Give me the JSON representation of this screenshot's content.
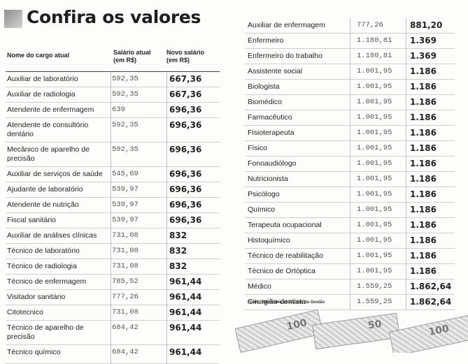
{
  "title": "Confira os valores",
  "headers": {
    "cargo": "Nome do cargo atual",
    "salario_atual": "Salário atual (em R$)",
    "novo_salario": "Novo salário (em R$)"
  },
  "left_rows": [
    {
      "cargo": "Auxiliar de laboratório",
      "atual": "592,35",
      "novo": "667,36"
    },
    {
      "cargo": "Auxiliar de radiologia",
      "atual": "592,35",
      "novo": "667,36"
    },
    {
      "cargo": "Atendente de enfermagem",
      "atual": "639",
      "novo": "696,36"
    },
    {
      "cargo": "Atendente de consultório dentário",
      "atual": "592,35",
      "novo": "696,36"
    },
    {
      "cargo": "Mecânico de aparelho de precisão",
      "atual": "592,35",
      "novo": "696,36"
    },
    {
      "cargo": "Auxiliar de serviços de saúde",
      "atual": "545,69",
      "novo": "696,36"
    },
    {
      "cargo": "Ajudante de laboratório",
      "atual": "539,97",
      "novo": "696,36"
    },
    {
      "cargo": "Atendente de nutrição",
      "atual": "539,97",
      "novo": "696,36"
    },
    {
      "cargo": "Fiscal sanitário",
      "atual": "539,97",
      "novo": "696,36"
    },
    {
      "cargo": "Auxiliar de análises clínicas",
      "atual": "731,08",
      "novo": "832"
    },
    {
      "cargo": "Técnico de laboratório",
      "atual": "731,08",
      "novo": "832"
    },
    {
      "cargo": "Técnico de radiologia",
      "atual": "731,08",
      "novo": "832"
    },
    {
      "cargo": "Técnico de enfermagem",
      "atual": "785,52",
      "novo": "961,44"
    },
    {
      "cargo": "Visitador sanitário",
      "atual": "777,26",
      "novo": "961,44"
    },
    {
      "cargo": "Citotecnico",
      "atual": "731,08",
      "novo": "961,44"
    },
    {
      "cargo": "Técnico de aparelho de precisão",
      "atual": "684,42",
      "novo": "961,44"
    },
    {
      "cargo": "Técnico químico",
      "atual": "684,42",
      "novo": "961,44"
    }
  ],
  "right_rows": [
    {
      "cargo": "Auxiliar de enfermagem",
      "atual": "777,26",
      "novo": "881,20"
    },
    {
      "cargo": "Enfermeiro",
      "atual": "1.180,81",
      "novo": "1.369"
    },
    {
      "cargo": "Enfermeiro do trabalho",
      "atual": "1.180,81",
      "novo": "1.369"
    },
    {
      "cargo": "Assistente social",
      "atual": "1.001,95",
      "novo": "1.186"
    },
    {
      "cargo": "Biologista",
      "atual": "1.001,95",
      "novo": "1.186"
    },
    {
      "cargo": "Biomédico",
      "atual": "1.001,95",
      "novo": "1.186"
    },
    {
      "cargo": "Farmacêutico",
      "atual": "1.001,95",
      "novo": "1.186"
    },
    {
      "cargo": "Fisioterapeuta",
      "atual": "1.001,95",
      "novo": "1.186"
    },
    {
      "cargo": "Físico",
      "atual": "1.001,95",
      "novo": "1.186"
    },
    {
      "cargo": "Fonoaudiólogo",
      "atual": "1.001,95",
      "novo": "1.186"
    },
    {
      "cargo": "Nutricionista",
      "atual": "1.001,95",
      "novo": "1.186"
    },
    {
      "cargo": "Psicólogo",
      "atual": "1.001,95",
      "novo": "1.186"
    },
    {
      "cargo": "Químico",
      "atual": "1.001,95",
      "novo": "1.186"
    },
    {
      "cargo": "Terapeuta ocupacional",
      "atual": "1.001,95",
      "novo": "1.186"
    },
    {
      "cargo": "Histoquímico",
      "atual": "1.001,95",
      "novo": "1.186"
    },
    {
      "cargo": "Técnico de reabilitação",
      "atual": "1.001,95",
      "novo": "1.186"
    },
    {
      "cargo": "Técnico de Ortóptica",
      "atual": "1.001,95",
      "novo": "1.186"
    },
    {
      "cargo": "Médico",
      "atual": "1.559,25",
      "novo": "1.862,64"
    },
    {
      "cargo": "Cirurgião-dentista",
      "atual": "1.559,25",
      "novo": "1.862,64"
    }
  ],
  "source": "Fonte: Secretaria de Estado da Gestão",
  "banknotes": [
    {
      "value": "100"
    },
    {
      "value": "50"
    },
    {
      "value": "100"
    }
  ]
}
